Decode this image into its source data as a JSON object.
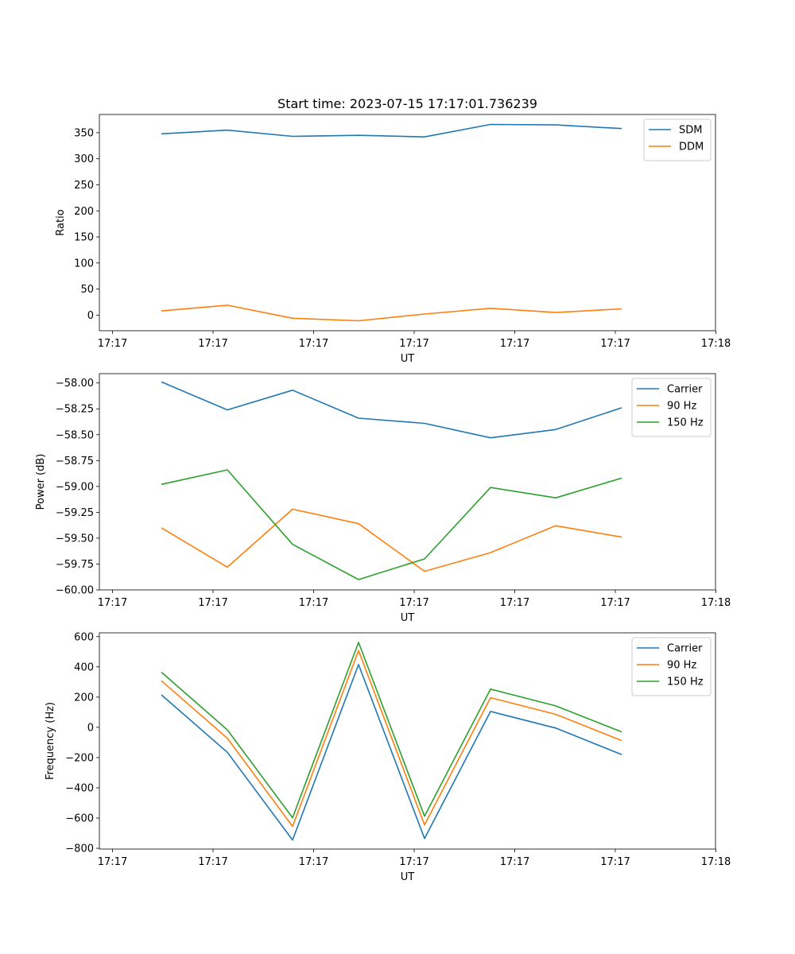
{
  "chart_data": [
    {
      "type": "line",
      "title": "Start time: 2023-07-15 17:17:01.736239",
      "xlabel": "UT",
      "ylabel": "Ratio",
      "x_tick_labels": [
        "17:17",
        "17:17",
        "17:17",
        "17:17",
        "17:17",
        "17:17",
        "17:18"
      ],
      "y_ticks": [
        0,
        50,
        100,
        150,
        200,
        250,
        300,
        350
      ],
      "y_tick_labels": [
        "0",
        "50",
        "100",
        "150",
        "200",
        "250",
        "300",
        "350"
      ],
      "ylim": [
        -30,
        385
      ],
      "legend_position": "top-right",
      "series": [
        {
          "name": "SDM",
          "color": "#1f77b4",
          "values": [
            348,
            355,
            343,
            345,
            342,
            366,
            365,
            358
          ]
        },
        {
          "name": "DDM",
          "color": "#ff7f0e",
          "values": [
            8,
            19,
            -6,
            -11,
            2,
            13,
            5,
            12
          ]
        }
      ]
    },
    {
      "type": "line",
      "title": "",
      "xlabel": "UT",
      "ylabel": "Power (dB)",
      "x_tick_labels": [
        "17:17",
        "17:17",
        "17:17",
        "17:17",
        "17:17",
        "17:17",
        "17:18"
      ],
      "y_ticks": [
        -60.0,
        -59.75,
        -59.5,
        -59.25,
        -59.0,
        -58.75,
        -58.5,
        -58.25,
        -58.0
      ],
      "y_tick_labels": [
        "−60.00",
        "−59.75",
        "−59.50",
        "−59.25",
        "−59.00",
        "−58.75",
        "−58.50",
        "−58.25",
        "−58.00"
      ],
      "ylim": [
        -60.0,
        -57.91
      ],
      "legend_position": "top-right",
      "series": [
        {
          "name": "Carrier",
          "color": "#1f77b4",
          "values": [
            -57.99,
            -58.26,
            -58.07,
            -58.34,
            -58.39,
            -58.53,
            -58.45,
            -58.24
          ]
        },
        {
          "name": "90 Hz",
          "color": "#ff7f0e",
          "values": [
            -59.4,
            -59.78,
            -59.22,
            -59.36,
            -59.82,
            -59.64,
            -59.38,
            -59.49
          ]
        },
        {
          "name": "150 Hz",
          "color": "#2ca02c",
          "values": [
            -58.98,
            -58.84,
            -59.56,
            -59.9,
            -59.7,
            -59.01,
            -59.11,
            -58.92
          ]
        }
      ]
    },
    {
      "type": "line",
      "title": "",
      "xlabel": "UT",
      "ylabel": "Frequency (Hz)",
      "x_tick_labels": [
        "17:17",
        "17:17",
        "17:17",
        "17:17",
        "17:17",
        "17:17",
        "17:18"
      ],
      "y_ticks": [
        -800,
        -600,
        -400,
        -200,
        0,
        200,
        400,
        600
      ],
      "y_tick_labels": [
        "−800",
        "−600",
        "−400",
        "−200",
        "0",
        "200",
        "400",
        "600"
      ],
      "ylim": [
        -805,
        625
      ],
      "legend_position": "top-right",
      "series": [
        {
          "name": "Carrier",
          "color": "#1f77b4",
          "values": [
            215,
            -165,
            -745,
            415,
            -735,
            105,
            -5,
            -180
          ]
        },
        {
          "name": "90 Hz",
          "color": "#ff7f0e",
          "values": [
            308,
            -72,
            -655,
            508,
            -645,
            196,
            86,
            -88
          ]
        },
        {
          "name": "150 Hz",
          "color": "#2ca02c",
          "values": [
            365,
            -17,
            -598,
            562,
            -588,
            253,
            142,
            -30
          ]
        }
      ]
    }
  ]
}
